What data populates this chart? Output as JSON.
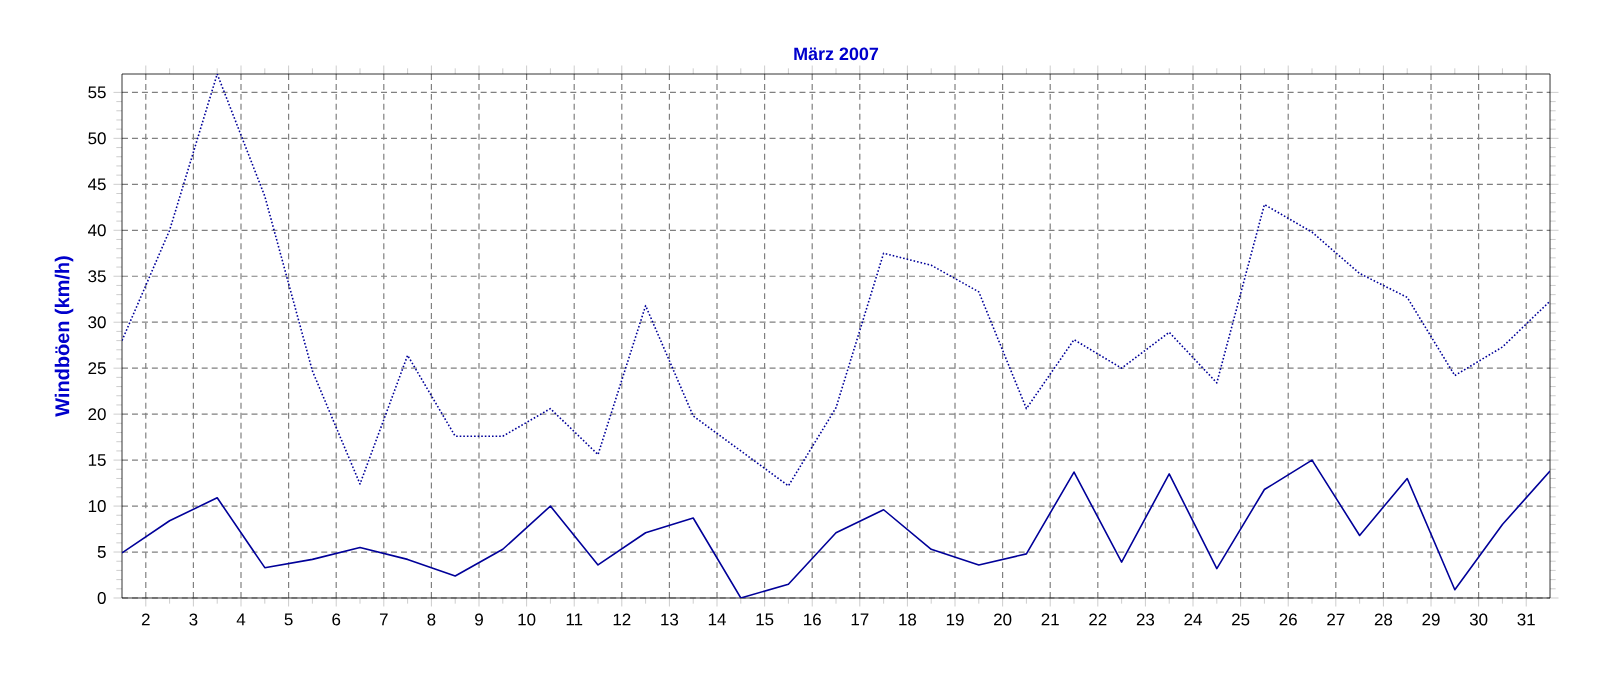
{
  "chart_data": {
    "type": "line",
    "title": "März 2007",
    "ylabel": "Windböen  (km/h)",
    "x": [
      1.5,
      2.5,
      3.5,
      4.5,
      5.5,
      6.5,
      7.5,
      8.5,
      9.5,
      10.5,
      11.5,
      12.5,
      13.5,
      14.5,
      15.5,
      16.5,
      17.5,
      18.5,
      19.5,
      20.5,
      21.5,
      22.5,
      23.5,
      24.5,
      25.5,
      26.5,
      27.5,
      28.5,
      29.5,
      30.5,
      31.5
    ],
    "series": [
      {
        "color": "#000099",
        "line_style": "dotted",
        "values": [
          28.0,
          40.0,
          57.0,
          43.7,
          24.7,
          12.4,
          26.4,
          17.6,
          17.6,
          20.6,
          15.6,
          31.8,
          19.8,
          16.0,
          12.2,
          20.7,
          37.5,
          36.2,
          33.3,
          20.6,
          28.1,
          25.0,
          28.9,
          23.4,
          42.8,
          39.8,
          35.3,
          32.7,
          24.2,
          27.3,
          32.3
        ]
      },
      {
        "color": "#000099",
        "line_style": "solid",
        "values": [
          4.9,
          8.4,
          10.9,
          3.3,
          4.2,
          5.5,
          4.2,
          2.4,
          5.3,
          10.0,
          3.6,
          7.1,
          8.7,
          0,
          1.5,
          7.1,
          9.6,
          5.3,
          3.6,
          4.8,
          13.7,
          3.9,
          13.5,
          3.2,
          11.8,
          15.0,
          6.8,
          13.0,
          0.9,
          8.0,
          13.8
        ]
      }
    ],
    "xlim": [
      1.5,
      31.5
    ],
    "ylim": [
      0,
      57
    ],
    "xticks": [
      2,
      3,
      4,
      5,
      6,
      7,
      8,
      9,
      10,
      11,
      12,
      13,
      14,
      15,
      16,
      17,
      18,
      19,
      20,
      21,
      22,
      23,
      24,
      25,
      26,
      27,
      28,
      29,
      30,
      31
    ],
    "yticks": [
      0,
      5,
      10,
      15,
      20,
      25,
      30,
      35,
      40,
      45,
      50,
      55
    ],
    "grid": true
  }
}
